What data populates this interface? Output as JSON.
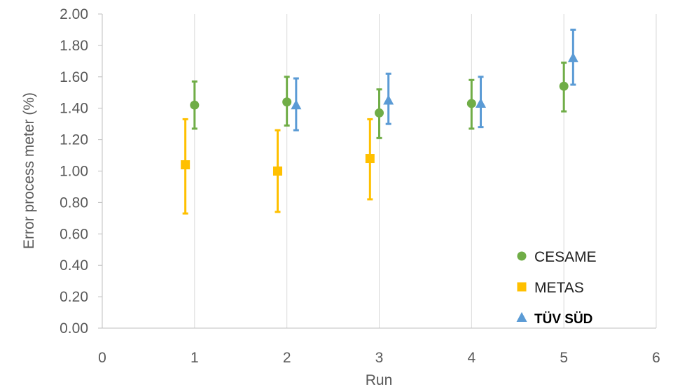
{
  "chart_data": {
    "type": "scatter",
    "xlabel": "Run",
    "ylabel": "Error process meter (%)",
    "xlim": [
      0,
      6
    ],
    "ylim": [
      0,
      2
    ],
    "x_ticks": [
      "0",
      "1",
      "2",
      "3",
      "4",
      "5",
      "6"
    ],
    "y_ticks": [
      "0.00",
      "0.20",
      "0.40",
      "0.60",
      "0.80",
      "1.00",
      "1.20",
      "1.40",
      "1.60",
      "1.80",
      "2.00"
    ],
    "grid": "vertical",
    "legend_position": "bottom-right",
    "series": [
      {
        "name": "CESAME",
        "color": "#70ad47",
        "marker": "circle",
        "points": [
          {
            "x": 1,
            "y": 1.42,
            "err_low": 1.27,
            "err_high": 1.57
          },
          {
            "x": 2,
            "y": 1.44,
            "err_low": 1.29,
            "err_high": 1.6
          },
          {
            "x": 3,
            "y": 1.37,
            "err_low": 1.21,
            "err_high": 1.52
          },
          {
            "x": 4,
            "y": 1.43,
            "err_low": 1.27,
            "err_high": 1.58
          },
          {
            "x": 5,
            "y": 1.54,
            "err_low": 1.38,
            "err_high": 1.69
          }
        ]
      },
      {
        "name": "METAS",
        "color": "#ffc000",
        "marker": "square",
        "points": [
          {
            "x": 0.9,
            "y": 1.04,
            "err_low": 0.73,
            "err_high": 1.33
          },
          {
            "x": 1.9,
            "y": 1.0,
            "err_low": 0.74,
            "err_high": 1.26
          },
          {
            "x": 2.9,
            "y": 1.08,
            "err_low": 0.82,
            "err_high": 1.33
          }
        ]
      },
      {
        "name": "TÜV SÜD",
        "color": "#5b9bd5",
        "marker": "triangle",
        "points": [
          {
            "x": 2.1,
            "y": 1.42,
            "err_low": 1.26,
            "err_high": 1.59
          },
          {
            "x": 3.1,
            "y": 1.45,
            "err_low": 1.3,
            "err_high": 1.62
          },
          {
            "x": 4.1,
            "y": 1.43,
            "err_low": 1.28,
            "err_high": 1.6
          },
          {
            "x": 5.1,
            "y": 1.72,
            "err_low": 1.55,
            "err_high": 1.9
          }
        ]
      }
    ]
  }
}
